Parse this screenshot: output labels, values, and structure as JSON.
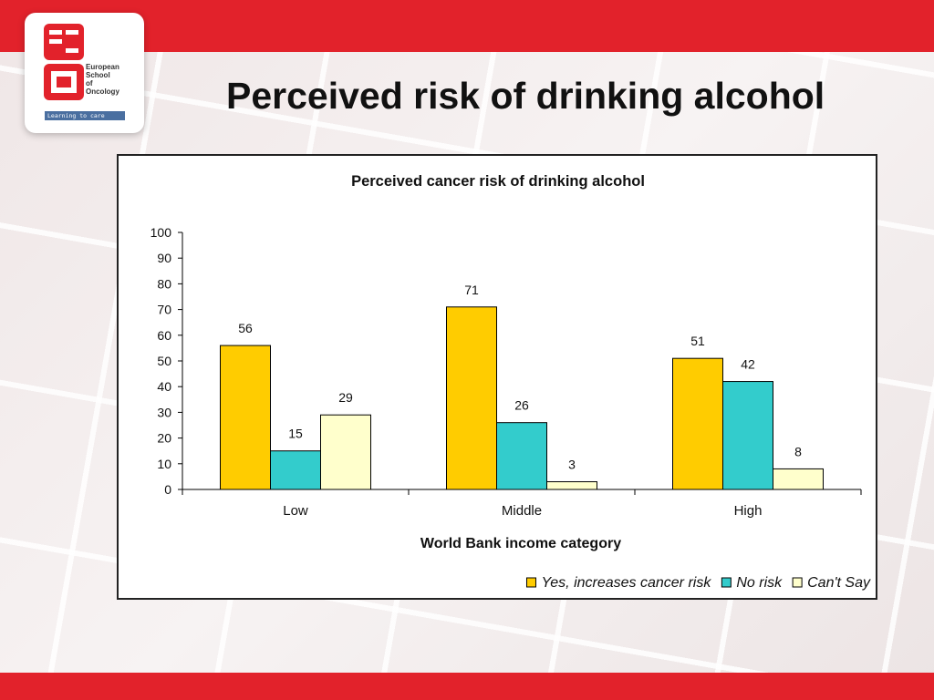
{
  "slide": {
    "title": "Perceived risk of drinking alcohol",
    "logo": {
      "name_lines": "European\nSchool\nof\nOncology",
      "tagline": "Learning to care",
      "mark_color": "#e2222b"
    },
    "accent_color": "#e2222b"
  },
  "chart_data": {
    "type": "bar",
    "title": "Perceived cancer risk of drinking alcohol",
    "xlabel": "World Bank income category",
    "ylabel": "",
    "ylim": [
      0,
      100
    ],
    "yticks": [
      "0",
      "10",
      "20",
      "30",
      "40",
      "50",
      "60",
      "70",
      "80",
      "90",
      "100"
    ],
    "categories": [
      "Low",
      "Middle",
      "High"
    ],
    "series": [
      {
        "name": "Yes, increases cancer risk",
        "values": [
          56,
          71,
          51
        ],
        "color": "#ffcc00"
      },
      {
        "name": "No risk",
        "values": [
          15,
          26,
          42
        ],
        "color": "#33cccc"
      },
      {
        "name": "Can't Say",
        "values": [
          29,
          3,
          8
        ],
        "color": "#ffffcc"
      }
    ],
    "grid": false,
    "legend_position": "bottom-right"
  }
}
